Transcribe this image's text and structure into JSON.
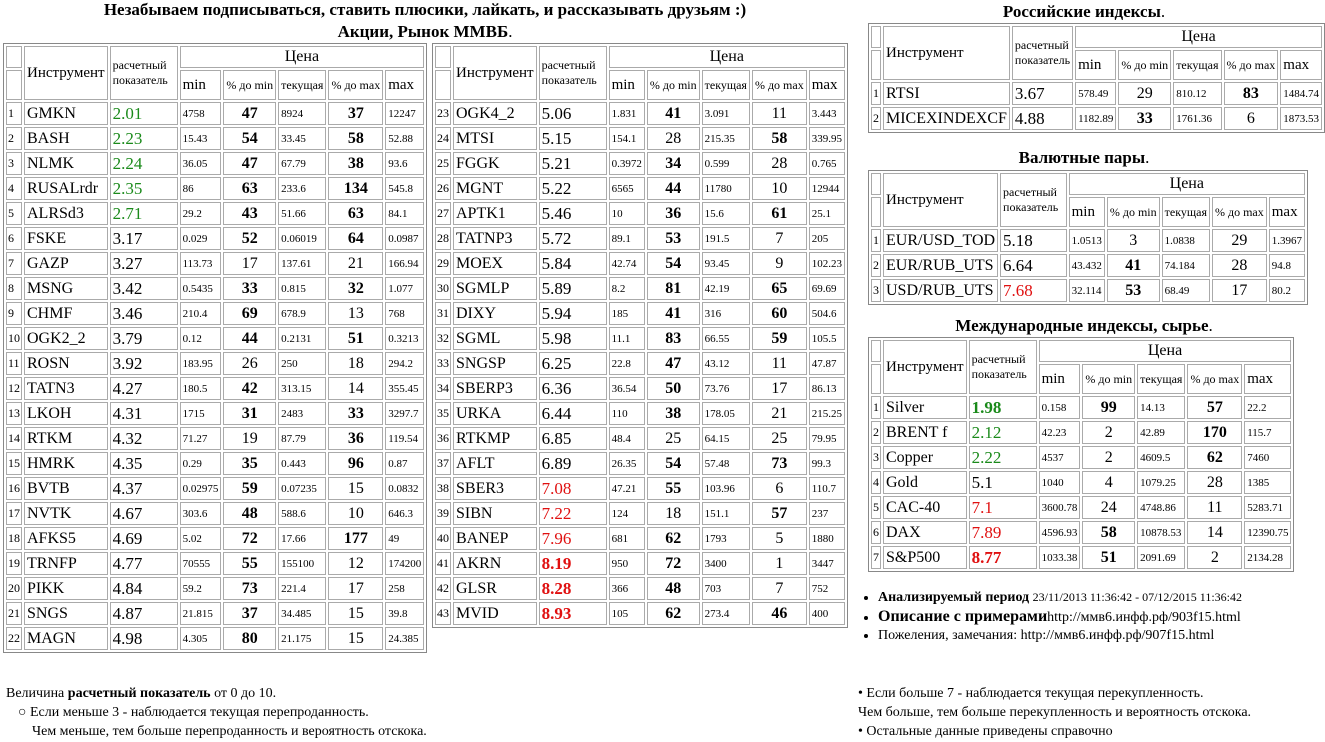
{
  "header": {
    "line1": "Незабываем подписываться, ставить плюсики, лайкать, и рассказывать друзьям :)",
    "line2": "Акции, Рынок ММВБ",
    "dot": "."
  },
  "columns": {
    "instrument": "Инструмент",
    "ratio": "расчетный показатель",
    "price": "Цена",
    "min": "min",
    "pct_min": "% до min",
    "current": "текущая",
    "pct_max": "% до max",
    "max": "max"
  },
  "stocks_left": [
    [
      "1",
      "GMKN",
      "2.01",
      "4758",
      "47",
      "8924",
      "37",
      "12247"
    ],
    [
      "2",
      "BASH",
      "2.23",
      "15.43",
      "54",
      "33.45",
      "58",
      "52.88"
    ],
    [
      "3",
      "NLMK",
      "2.24",
      "36.05",
      "47",
      "67.79",
      "38",
      "93.6"
    ],
    [
      "4",
      "RUSALrdr",
      "2.35",
      "86",
      "63",
      "233.6",
      "134",
      "545.8"
    ],
    [
      "5",
      "ALRSd3",
      "2.71",
      "29.2",
      "43",
      "51.66",
      "63",
      "84.1"
    ],
    [
      "6",
      "FSKE",
      "3.17",
      "0.029",
      "52",
      "0.06019",
      "64",
      "0.0987"
    ],
    [
      "7",
      "GAZP",
      "3.27",
      "113.73",
      "17",
      "137.61",
      "21",
      "166.94"
    ],
    [
      "8",
      "MSNG",
      "3.42",
      "0.5435",
      "33",
      "0.815",
      "32",
      "1.077"
    ],
    [
      "9",
      "CHMF",
      "3.46",
      "210.4",
      "69",
      "678.9",
      "13",
      "768"
    ],
    [
      "10",
      "OGK2_2",
      "3.79",
      "0.12",
      "44",
      "0.2131",
      "51",
      "0.3213"
    ],
    [
      "11",
      "ROSN",
      "3.92",
      "183.95",
      "26",
      "250",
      "18",
      "294.2"
    ],
    [
      "12",
      "TATN3",
      "4.27",
      "180.5",
      "42",
      "313.15",
      "14",
      "355.45"
    ],
    [
      "13",
      "LKOH",
      "4.31",
      "1715",
      "31",
      "2483",
      "33",
      "3297.7"
    ],
    [
      "14",
      "RTKM",
      "4.32",
      "71.27",
      "19",
      "87.79",
      "36",
      "119.54"
    ],
    [
      "15",
      "HMRK",
      "4.35",
      "0.29",
      "35",
      "0.443",
      "96",
      "0.87"
    ],
    [
      "16",
      "BVTB",
      "4.37",
      "0.02975",
      "59",
      "0.07235",
      "15",
      "0.0832"
    ],
    [
      "17",
      "NVTK",
      "4.67",
      "303.6",
      "48",
      "588.6",
      "10",
      "646.3"
    ],
    [
      "18",
      "AFKS5",
      "4.69",
      "5.02",
      "72",
      "17.66",
      "177",
      "49"
    ],
    [
      "19",
      "TRNFP",
      "4.77",
      "70555",
      "55",
      "155100",
      "12",
      "174200"
    ],
    [
      "20",
      "PIKK",
      "4.84",
      "59.2",
      "73",
      "221.4",
      "17",
      "258"
    ],
    [
      "21",
      "SNGS",
      "4.87",
      "21.815",
      "37",
      "34.485",
      "15",
      "39.8"
    ],
    [
      "22",
      "MAGN",
      "4.98",
      "4.305",
      "80",
      "21.175",
      "15",
      "24.385"
    ]
  ],
  "stocks_right": [
    [
      "23",
      "OGK4_2",
      "5.06",
      "1.831",
      "41",
      "3.091",
      "11",
      "3.443"
    ],
    [
      "24",
      "MTSI",
      "5.15",
      "154.1",
      "28",
      "215.35",
      "58",
      "339.95"
    ],
    [
      "25",
      "FGGK",
      "5.21",
      "0.3972",
      "34",
      "0.599",
      "28",
      "0.765"
    ],
    [
      "26",
      "MGNT",
      "5.22",
      "6565",
      "44",
      "11780",
      "10",
      "12944"
    ],
    [
      "27",
      "APTK1",
      "5.46",
      "10",
      "36",
      "15.6",
      "61",
      "25.1"
    ],
    [
      "28",
      "TATNP3",
      "5.72",
      "89.1",
      "53",
      "191.5",
      "7",
      "205"
    ],
    [
      "29",
      "MOEX",
      "5.84",
      "42.74",
      "54",
      "93.45",
      "9",
      "102.23"
    ],
    [
      "30",
      "SGMLP",
      "5.89",
      "8.2",
      "81",
      "42.19",
      "65",
      "69.69"
    ],
    [
      "31",
      "DIXY",
      "5.94",
      "185",
      "41",
      "316",
      "60",
      "504.6"
    ],
    [
      "32",
      "SGML",
      "5.98",
      "11.1",
      "83",
      "66.55",
      "59",
      "105.5"
    ],
    [
      "33",
      "SNGSP",
      "6.25",
      "22.8",
      "47",
      "43.12",
      "11",
      "47.87"
    ],
    [
      "34",
      "SBERP3",
      "6.36",
      "36.54",
      "50",
      "73.76",
      "17",
      "86.13"
    ],
    [
      "35",
      "URKA",
      "6.44",
      "110",
      "38",
      "178.05",
      "21",
      "215.25"
    ],
    [
      "36",
      "RTKMP",
      "6.85",
      "48.4",
      "25",
      "64.15",
      "25",
      "79.95"
    ],
    [
      "37",
      "AFLT",
      "6.89",
      "26.35",
      "54",
      "57.48",
      "73",
      "99.3"
    ],
    [
      "38",
      "SBER3",
      "7.08",
      "47.21",
      "55",
      "103.96",
      "6",
      "110.7"
    ],
    [
      "39",
      "SIBN",
      "7.22",
      "124",
      "18",
      "151.1",
      "57",
      "237"
    ],
    [
      "40",
      "BANEP",
      "7.96",
      "681",
      "62",
      "1793",
      "5",
      "1880"
    ],
    [
      "41",
      "AKRN",
      "8.19",
      "950",
      "72",
      "3400",
      "1",
      "3447"
    ],
    [
      "42",
      "GLSR",
      "8.28",
      "366",
      "48",
      "703",
      "7",
      "752"
    ],
    [
      "43",
      "MVID",
      "8.93",
      "105",
      "62",
      "273.4",
      "46",
      "400"
    ]
  ],
  "ru_indices": {
    "title": "Российские индексы",
    "rows": [
      [
        "1",
        "RTSI",
        "3.67",
        "578.49",
        "29",
        "810.12",
        "83",
        "1484.74"
      ],
      [
        "2",
        "MICEXINDEXCF",
        "4.88",
        "1182.89",
        "33",
        "1761.36",
        "6",
        "1873.53"
      ]
    ]
  },
  "currency": {
    "title": "Валютные пары",
    "rows": [
      [
        "1",
        "EUR/USD_TOD",
        "5.18",
        "1.0513",
        "3",
        "1.0838",
        "29",
        "1.3967"
      ],
      [
        "2",
        "EUR/RUB_UTS",
        "6.64",
        "43.432",
        "41",
        "74.184",
        "28",
        "94.8"
      ],
      [
        "3",
        "USD/RUB_UTS",
        "7.68",
        "32.114",
        "53",
        "68.49",
        "17",
        "80.2"
      ]
    ]
  },
  "intl": {
    "title": "Международные индексы, сырье",
    "rows": [
      [
        "1",
        "Silver",
        "1.98",
        "0.158",
        "99",
        "14.13",
        "57",
        "22.2"
      ],
      [
        "2",
        "BRENT f",
        "2.12",
        "42.23",
        "2",
        "42.89",
        "170",
        "115.7"
      ],
      [
        "3",
        "Copper",
        "2.22",
        "4537",
        "2",
        "4609.5",
        "62",
        "7460"
      ],
      [
        "4",
        "Gold",
        "5.1",
        "1040",
        "4",
        "1079.25",
        "28",
        "1385"
      ],
      [
        "5",
        "CAC-40",
        "7.1",
        "3600.78",
        "24",
        "4748.86",
        "11",
        "5283.71"
      ],
      [
        "6",
        "DAX",
        "7.89",
        "4596.93",
        "58",
        "10878.53",
        "14",
        "12390.75"
      ],
      [
        "7",
        "S&P500",
        "8.77",
        "1033.38",
        "51",
        "2091.69",
        "2",
        "2134.28"
      ]
    ]
  },
  "info": {
    "period_label": "Анализируемый период",
    "period_value": "23/11/2013 11:36:42 - 07/12/2015 11:36:42",
    "desc_label": "Описание с примерами",
    "desc_link": "http://ммв6.инфф.рф/903f15.html",
    "wishes": "Пожеления, замечания: http://ммв6.инфф.рф/907f15.html"
  },
  "footer": {
    "l1a": "Величина ",
    "l1b": "расчетный показатель",
    "l1c": " от 0 до 10.",
    "l2": "Если меньше 3 - наблюдается текущая перепроданность.",
    "l3": "Чем меньше, тем больше перепроданность и вероятность отскока.",
    "r1": "Если больше 7 - наблюдается текущая перекупленность.",
    "r2": "Чем больше, тем больше перекупленность и вероятность отскока.",
    "r3": "Остальные данные приведены справочно"
  }
}
